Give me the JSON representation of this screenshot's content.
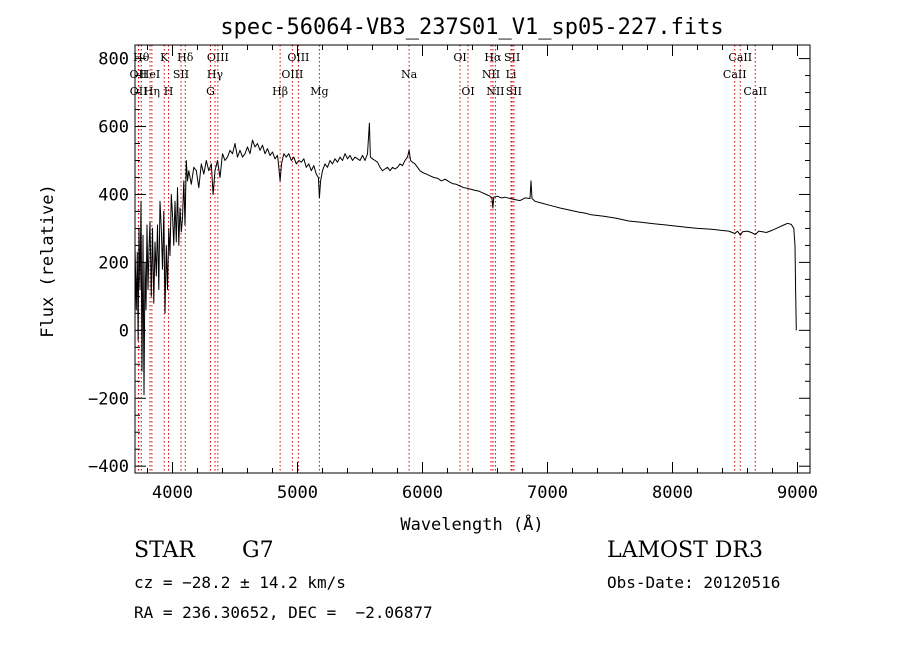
{
  "chart_data": {
    "type": "line",
    "title": "spec-56064-VB3_237S01_V1_sp05-227.fits",
    "xlabel": "Wavelength (Å)",
    "ylabel": "Flux (relative)",
    "xlim": [
      3700,
      9100
    ],
    "ylim": [
      -420,
      840
    ],
    "xticks": [
      4000,
      5000,
      6000,
      7000,
      8000,
      9000
    ],
    "yticks": [
      -400,
      -200,
      0,
      200,
      400,
      600,
      800
    ],
    "grid": false,
    "series": [
      {
        "name": "flux",
        "points": [
          [
            3700,
            250
          ],
          [
            3710,
            60
          ],
          [
            3718,
            230
          ],
          [
            3725,
            -30
          ],
          [
            3732,
            300
          ],
          [
            3740,
            120
          ],
          [
            3748,
            380
          ],
          [
            3756,
            -120
          ],
          [
            3764,
            280
          ],
          [
            3772,
            -190
          ],
          [
            3780,
            200
          ],
          [
            3788,
            60
          ],
          [
            3796,
            310
          ],
          [
            3804,
            120
          ],
          [
            3812,
            240
          ],
          [
            3820,
            320
          ],
          [
            3830,
            100
          ],
          [
            3840,
            300
          ],
          [
            3850,
            80
          ],
          [
            3860,
            260
          ],
          [
            3870,
            160
          ],
          [
            3880,
            310
          ],
          [
            3890,
            120
          ],
          [
            3900,
            380
          ],
          [
            3910,
            300
          ],
          [
            3920,
            180
          ],
          [
            3930,
            350
          ],
          [
            3940,
            50
          ],
          [
            3950,
            250
          ],
          [
            3960,
            120
          ],
          [
            3970,
            300
          ],
          [
            3980,
            220
          ],
          [
            3990,
            400
          ],
          [
            4000,
            340
          ],
          [
            4010,
            250
          ],
          [
            4020,
            380
          ],
          [
            4030,
            260
          ],
          [
            4040,
            420
          ],
          [
            4050,
            250
          ],
          [
            4060,
            360
          ],
          [
            4070,
            290
          ],
          [
            4080,
            330
          ],
          [
            4090,
            440
          ],
          [
            4100,
            310
          ],
          [
            4110,
            500
          ],
          [
            4120,
            440
          ],
          [
            4130,
            470
          ],
          [
            4150,
            430
          ],
          [
            4170,
            480
          ],
          [
            4190,
            470
          ],
          [
            4210,
            420
          ],
          [
            4230,
            490
          ],
          [
            4250,
            460
          ],
          [
            4270,
            500
          ],
          [
            4290,
            470
          ],
          [
            4310,
            490
          ],
          [
            4325,
            400
          ],
          [
            4340,
            470
          ],
          [
            4360,
            500
          ],
          [
            4380,
            450
          ],
          [
            4400,
            520
          ],
          [
            4420,
            500
          ],
          [
            4440,
            510
          ],
          [
            4460,
            530
          ],
          [
            4480,
            520
          ],
          [
            4500,
            550
          ],
          [
            4520,
            510
          ],
          [
            4540,
            530
          ],
          [
            4560,
            510
          ],
          [
            4580,
            520
          ],
          [
            4600,
            540
          ],
          [
            4620,
            520
          ],
          [
            4640,
            560
          ],
          [
            4660,
            540
          ],
          [
            4680,
            550
          ],
          [
            4700,
            530
          ],
          [
            4720,
            545
          ],
          [
            4740,
            520
          ],
          [
            4760,
            535
          ],
          [
            4780,
            515
          ],
          [
            4800,
            525
          ],
          [
            4820,
            505
          ],
          [
            4840,
            515
          ],
          [
            4850,
            480
          ],
          [
            4861,
            440
          ],
          [
            4872,
            490
          ],
          [
            4890,
            520
          ],
          [
            4910,
            510
          ],
          [
            4930,
            520
          ],
          [
            4950,
            500
          ],
          [
            4970,
            510
          ],
          [
            4990,
            490
          ],
          [
            5010,
            500
          ],
          [
            5030,
            495
          ],
          [
            5050,
            505
          ],
          [
            5070,
            480
          ],
          [
            5090,
            490
          ],
          [
            5110,
            470
          ],
          [
            5130,
            485
          ],
          [
            5150,
            460
          ],
          [
            5167,
            450
          ],
          [
            5175,
            390
          ],
          [
            5185,
            440
          ],
          [
            5200,
            470
          ],
          [
            5220,
            490
          ],
          [
            5240,
            480
          ],
          [
            5260,
            500
          ],
          [
            5280,
            490
          ],
          [
            5300,
            505
          ],
          [
            5320,
            495
          ],
          [
            5340,
            510
          ],
          [
            5360,
            500
          ],
          [
            5380,
            520
          ],
          [
            5400,
            505
          ],
          [
            5420,
            515
          ],
          [
            5440,
            500
          ],
          [
            5460,
            510
          ],
          [
            5480,
            505
          ],
          [
            5500,
            500
          ],
          [
            5520,
            515
          ],
          [
            5540,
            500
          ],
          [
            5560,
            520
          ],
          [
            5575,
            610
          ],
          [
            5583,
            510
          ],
          [
            5600,
            505
          ],
          [
            5620,
            500
          ],
          [
            5640,
            495
          ],
          [
            5660,
            480
          ],
          [
            5680,
            470
          ],
          [
            5700,
            475
          ],
          [
            5720,
            480
          ],
          [
            5740,
            470
          ],
          [
            5760,
            480
          ],
          [
            5780,
            475
          ],
          [
            5800,
            480
          ],
          [
            5820,
            490
          ],
          [
            5840,
            485
          ],
          [
            5860,
            500
          ],
          [
            5880,
            510
          ],
          [
            5893,
            530
          ],
          [
            5905,
            500
          ],
          [
            5920,
            495
          ],
          [
            5940,
            490
          ],
          [
            5960,
            480
          ],
          [
            5980,
            470
          ],
          [
            6000,
            465
          ],
          [
            6030,
            460
          ],
          [
            6060,
            455
          ],
          [
            6090,
            450
          ],
          [
            6120,
            448
          ],
          [
            6150,
            440
          ],
          [
            6180,
            445
          ],
          [
            6210,
            438
          ],
          [
            6240,
            432
          ],
          [
            6270,
            430
          ],
          [
            6300,
            425
          ],
          [
            6330,
            420
          ],
          [
            6360,
            418
          ],
          [
            6390,
            415
          ],
          [
            6420,
            412
          ],
          [
            6450,
            410
          ],
          [
            6480,
            405
          ],
          [
            6510,
            400
          ],
          [
            6540,
            395
          ],
          [
            6555,
            390
          ],
          [
            6563,
            360
          ],
          [
            6570,
            392
          ],
          [
            6600,
            395
          ],
          [
            6630,
            390
          ],
          [
            6660,
            392
          ],
          [
            6700,
            388
          ],
          [
            6740,
            385
          ],
          [
            6780,
            382
          ],
          [
            6820,
            390
          ],
          [
            6860,
            388
          ],
          [
            6868,
            440
          ],
          [
            6876,
            388
          ],
          [
            6900,
            380
          ],
          [
            6950,
            375
          ],
          [
            7000,
            370
          ],
          [
            7050,
            365
          ],
          [
            7100,
            360
          ],
          [
            7150,
            356
          ],
          [
            7200,
            352
          ],
          [
            7250,
            348
          ],
          [
            7300,
            345
          ],
          [
            7350,
            340
          ],
          [
            7400,
            338
          ],
          [
            7450,
            336
          ],
          [
            7500,
            333
          ],
          [
            7550,
            330
          ],
          [
            7600,
            326
          ],
          [
            7650,
            322
          ],
          [
            7700,
            320
          ],
          [
            7750,
            318
          ],
          [
            7800,
            316
          ],
          [
            7850,
            314
          ],
          [
            7900,
            312
          ],
          [
            7950,
            310
          ],
          [
            8000,
            308
          ],
          [
            8050,
            306
          ],
          [
            8100,
            304
          ],
          [
            8150,
            302
          ],
          [
            8200,
            300
          ],
          [
            8250,
            299
          ],
          [
            8300,
            298
          ],
          [
            8350,
            296
          ],
          [
            8400,
            294
          ],
          [
            8450,
            292
          ],
          [
            8498,
            285
          ],
          [
            8520,
            292
          ],
          [
            8542,
            280
          ],
          [
            8560,
            290
          ],
          [
            8600,
            292
          ],
          [
            8630,
            288
          ],
          [
            8662,
            282
          ],
          [
            8690,
            292
          ],
          [
            8720,
            290
          ],
          [
            8750,
            288
          ],
          [
            8780,
            292
          ],
          [
            8800,
            295
          ],
          [
            8830,
            300
          ],
          [
            8860,
            305
          ],
          [
            8890,
            310
          ],
          [
            8920,
            315
          ],
          [
            8950,
            312
          ],
          [
            8970,
            300
          ],
          [
            8980,
            250
          ],
          [
            8985,
            120
          ],
          [
            8990,
            0
          ]
        ]
      }
    ],
    "lines": [
      {
        "label": "Hθ",
        "x": 3750,
        "row": 1
      },
      {
        "label": "OII",
        "x": 3727,
        "row": 2
      },
      {
        "label": "OII",
        "x": 3729,
        "row": 3
      },
      {
        "label": "HeI",
        "x": 3820,
        "row": 2
      },
      {
        "label": "Hη",
        "x": 3835,
        "row": 3
      },
      {
        "label": "K",
        "x": 3934,
        "row": 1
      },
      {
        "label": "H",
        "x": 3968,
        "row": 3
      },
      {
        "label": "SII",
        "x": 4068,
        "row": 2
      },
      {
        "label": "Hδ",
        "x": 4102,
        "row": 1
      },
      {
        "label": "OIII",
        "x": 4363,
        "row": 1
      },
      {
        "label": "Hγ",
        "x": 4340,
        "row": 2
      },
      {
        "label": "G",
        "x": 4304,
        "row": 3
      },
      {
        "label": "Hβ",
        "x": 4861,
        "row": 3
      },
      {
        "label": "OIII",
        "x": 5007,
        "row": 1
      },
      {
        "label": "OIII",
        "x": 4959,
        "row": 2
      },
      {
        "label": "Mg",
        "x": 5175,
        "row": 3
      },
      {
        "label": "Na",
        "x": 5893,
        "row": 2
      },
      {
        "label": "OI",
        "x": 6300,
        "row": 1
      },
      {
        "label": "OI",
        "x": 6364,
        "row": 3
      },
      {
        "label": "Hα",
        "x": 6563,
        "row": 1
      },
      {
        "label": "NII",
        "x": 6548,
        "row": 2
      },
      {
        "label": "NII",
        "x": 6583,
        "row": 3
      },
      {
        "label": "SII",
        "x": 6717,
        "row": 1
      },
      {
        "label": "Li",
        "x": 6708,
        "row": 2
      },
      {
        "label": "SII",
        "x": 6731,
        "row": 3
      },
      {
        "label": "CaII",
        "x": 8542,
        "row": 1
      },
      {
        "label": "CaII",
        "x": 8498,
        "row": 2
      },
      {
        "label": "CaII",
        "x": 8662,
        "row": 3
      }
    ]
  },
  "info": {
    "class": "STAR",
    "subclass": "G7",
    "survey": "LAMOST DR3",
    "cz": "cz = −28.2 ± 14.2 km/s",
    "obs_date": "Obs-Date: 20120516",
    "coords": "RA = 236.30652, DEC =  −2.06877"
  }
}
